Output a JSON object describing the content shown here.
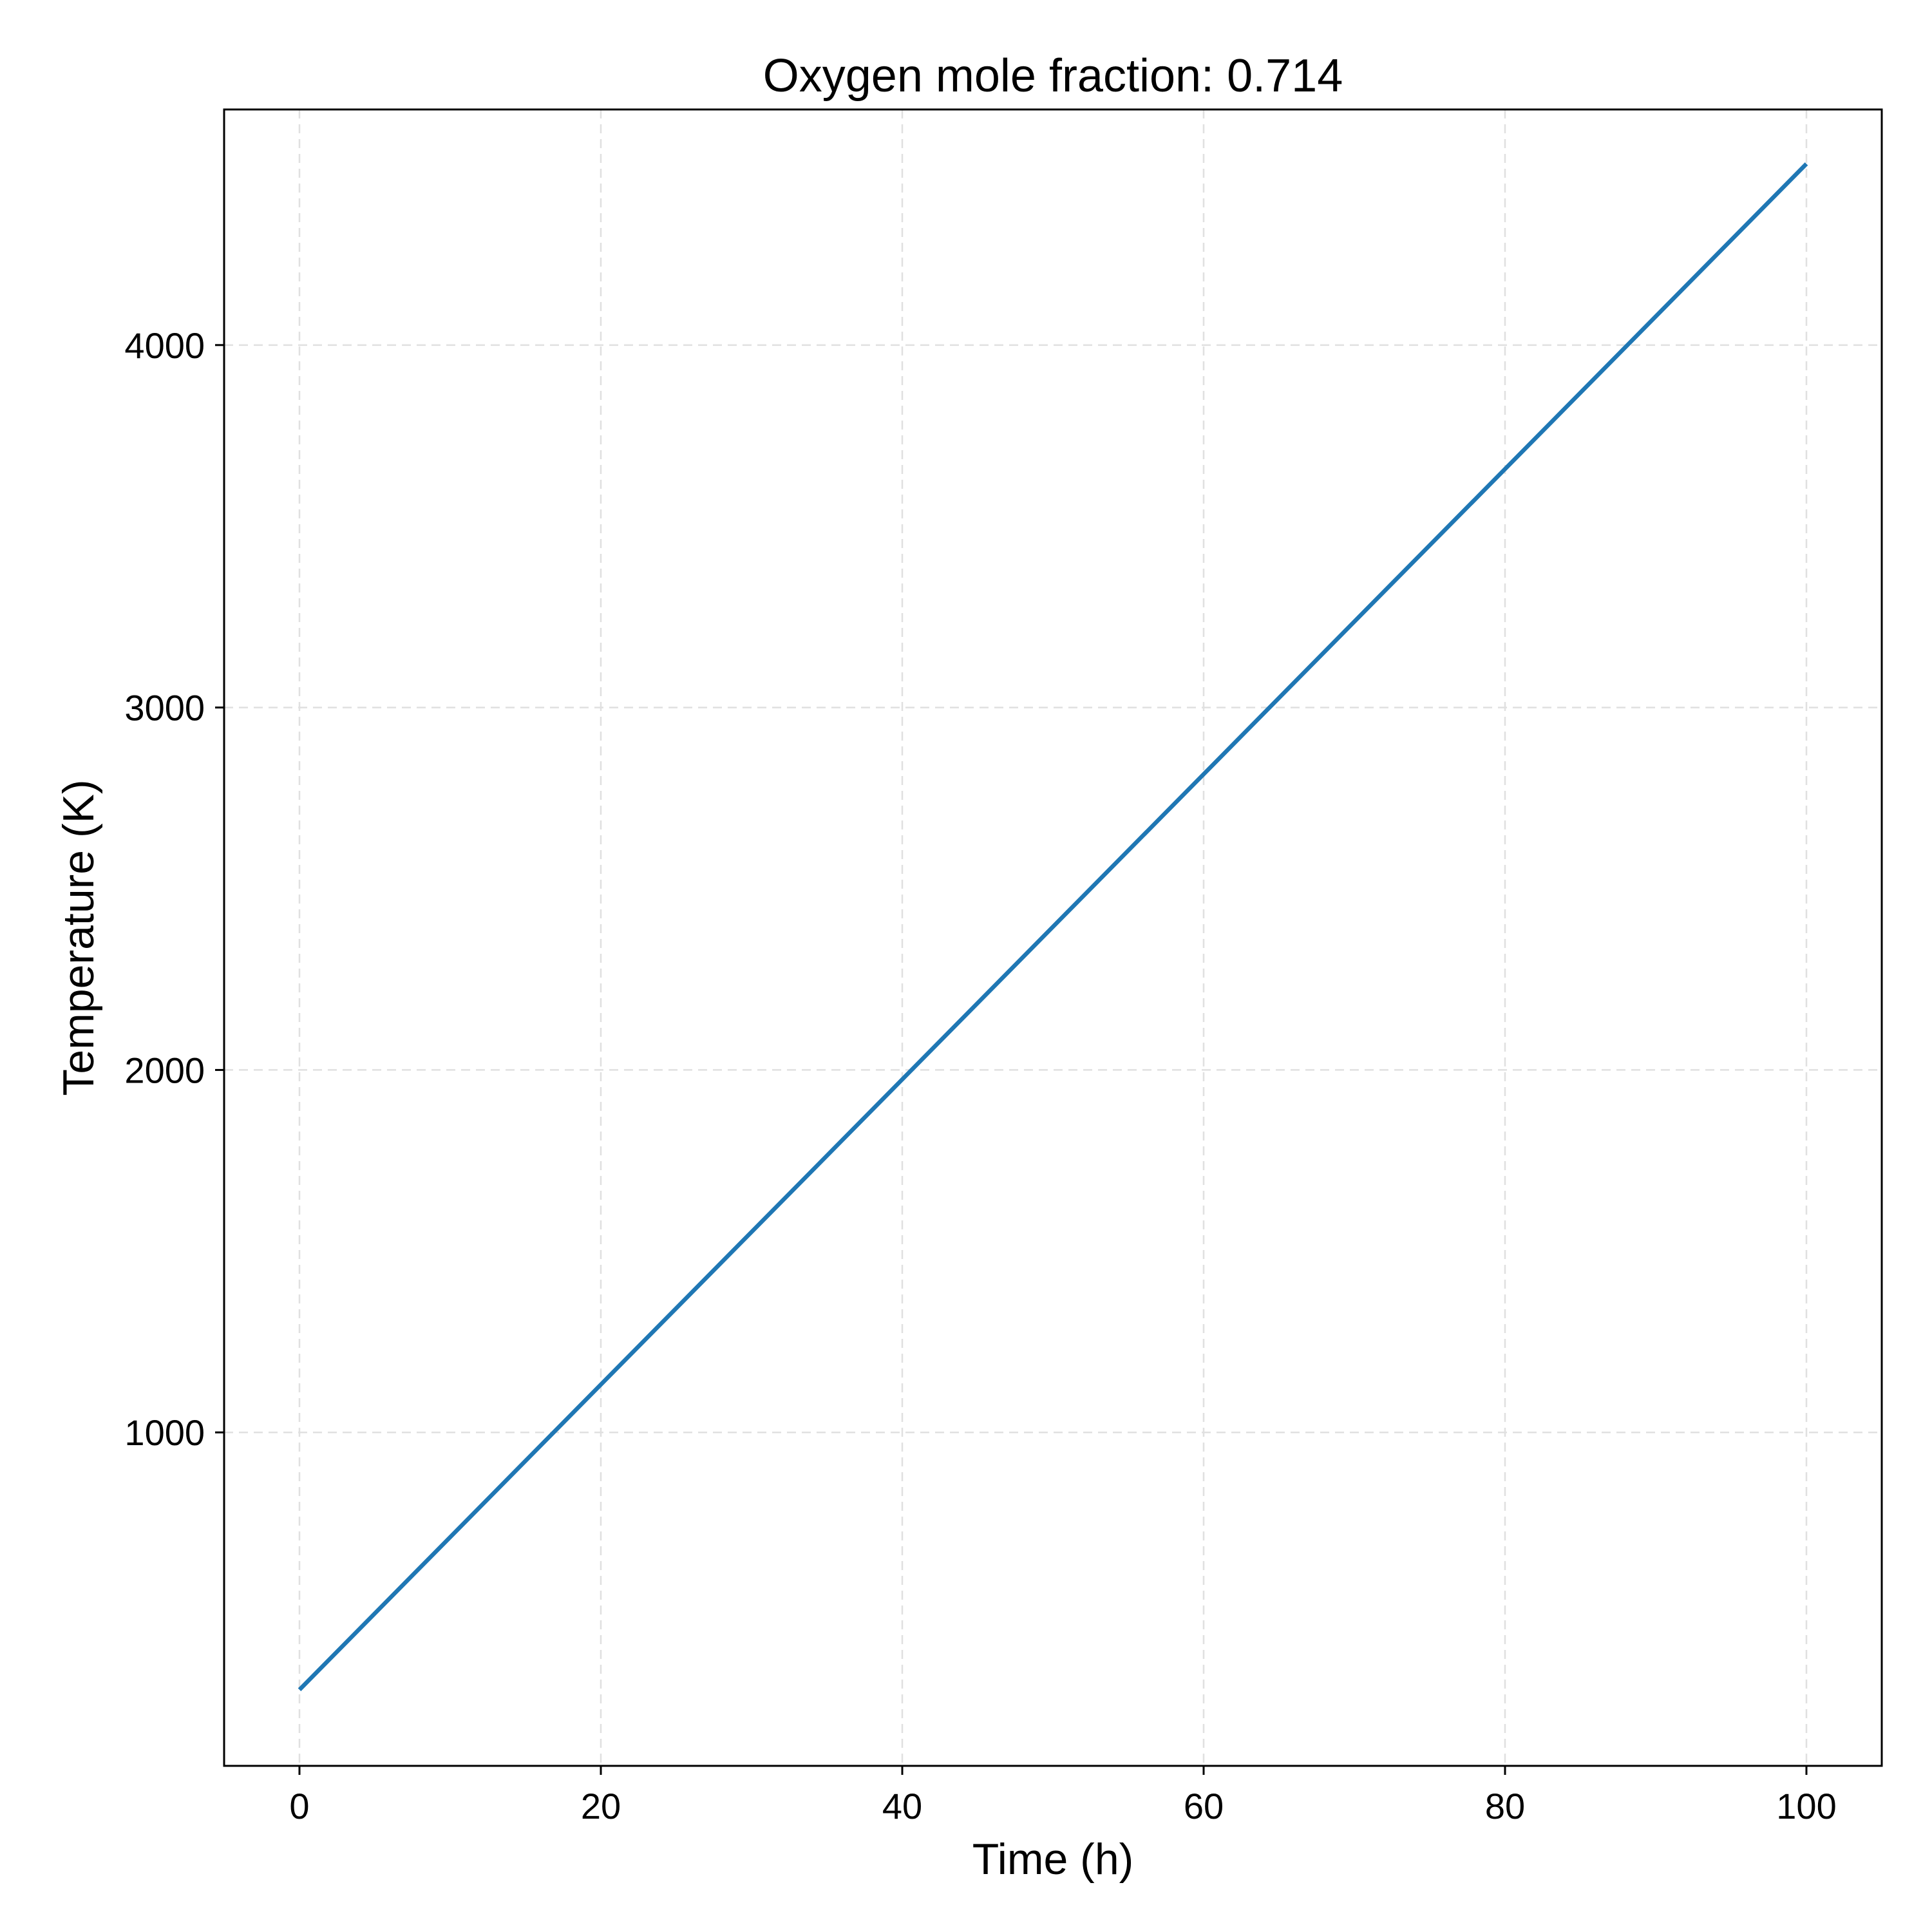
{
  "chart_data": {
    "type": "line",
    "title": "Oxygen mole fraction: 0.714",
    "xlabel": "Time (h)",
    "ylabel": "Temperature (K)",
    "xlim": [
      -5,
      105
    ],
    "ylim": [
      80,
      4650
    ],
    "xticks": [
      0,
      20,
      40,
      60,
      80,
      100
    ],
    "yticks": [
      1000,
      2000,
      3000,
      4000
    ],
    "grid": true,
    "series": [
      {
        "color": "#1f77b4",
        "x": [
          0,
          100
        ],
        "y": [
          290,
          4500
        ]
      }
    ]
  }
}
